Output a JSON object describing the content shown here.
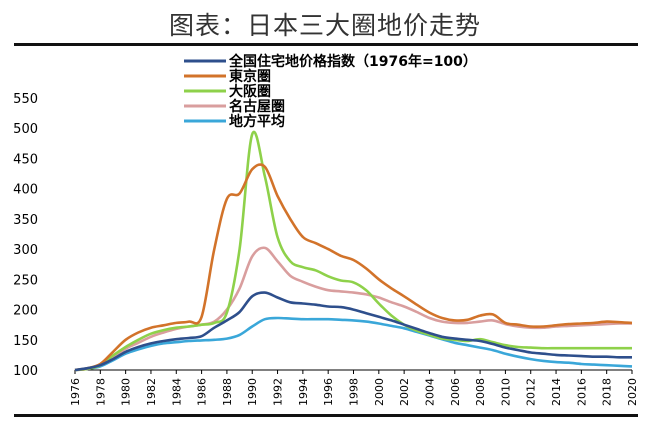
{
  "title": "图表：日本三大圈地价走势",
  "chart_data": {
    "type": "line",
    "title": "图表：日本三大圈地价走势",
    "xlabel": "",
    "ylabel": "",
    "xlim": [
      1976,
      2020
    ],
    "ylim": [
      100,
      550
    ],
    "yticks": [
      100,
      150,
      200,
      250,
      300,
      350,
      400,
      450,
      500,
      550
    ],
    "xticks": [
      1976,
      1978,
      1980,
      1982,
      1984,
      1986,
      1988,
      1990,
      1992,
      1994,
      1996,
      1998,
      2000,
      2002,
      2004,
      2006,
      2008,
      2010,
      2012,
      2014,
      2016,
      2018,
      2020
    ],
    "grid": false,
    "legend": "top-center",
    "x": [
      1976,
      1977,
      1978,
      1979,
      1980,
      1981,
      1982,
      1983,
      1984,
      1985,
      1986,
      1987,
      1988,
      1989,
      1990,
      1991,
      1992,
      1993,
      1994,
      1995,
      1996,
      1997,
      1998,
      1999,
      2000,
      2001,
      2002,
      2003,
      2004,
      2005,
      2006,
      2007,
      2008,
      2009,
      2010,
      2011,
      2012,
      2013,
      2014,
      2015,
      2016,
      2017,
      2018,
      2019,
      2020
    ],
    "series": [
      {
        "name": "全国住宅地价格指数（1976年=100）",
        "color": "#2e4f8c",
        "values": [
          100,
          103,
          108,
          118,
          130,
          138,
          144,
          148,
          151,
          153,
          156,
          170,
          182,
          196,
          222,
          228,
          220,
          212,
          210,
          208,
          205,
          204,
          200,
          194,
          188,
          182,
          175,
          168,
          161,
          155,
          152,
          150,
          148,
          143,
          137,
          133,
          129,
          127,
          125,
          124,
          123,
          122,
          122,
          121,
          121
        ]
      },
      {
        "name": "東京圏",
        "color": "#d2732a",
        "values": [
          100,
          103,
          110,
          130,
          150,
          162,
          170,
          174,
          178,
          180,
          188,
          300,
          383,
          392,
          432,
          436,
          388,
          350,
          320,
          310,
          300,
          289,
          282,
          268,
          250,
          235,
          222,
          208,
          195,
          186,
          182,
          183,
          190,
          192,
          178,
          175,
          172,
          172,
          174,
          176,
          177,
          178,
          180,
          179,
          178
        ]
      },
      {
        "name": "大阪圏",
        "color": "#8ed14a",
        "values": [
          100,
          102,
          108,
          124,
          138,
          150,
          160,
          166,
          170,
          172,
          175,
          178,
          195,
          300,
          490,
          420,
          320,
          280,
          270,
          265,
          255,
          248,
          245,
          232,
          210,
          190,
          175,
          165,
          158,
          152,
          150,
          148,
          151,
          146,
          141,
          138,
          137,
          136,
          136,
          136,
          136,
          136,
          136,
          136,
          136
        ]
      },
      {
        "name": "名古屋圏",
        "color": "#d99e9e",
        "values": [
          100,
          102,
          108,
          120,
          135,
          145,
          155,
          162,
          168,
          172,
          175,
          180,
          200,
          235,
          288,
          302,
          280,
          256,
          246,
          238,
          232,
          230,
          228,
          225,
          220,
          212,
          205,
          196,
          186,
          180,
          178,
          178,
          180,
          182,
          176,
          172,
          170,
          170,
          172,
          173,
          174,
          175,
          176,
          177,
          177
        ]
      },
      {
        "name": "地方平均",
        "color": "#3aa7d9",
        "values": [
          100,
          102,
          106,
          116,
          127,
          134,
          140,
          144,
          146,
          148,
          149,
          150,
          152,
          158,
          172,
          184,
          186,
          185,
          184,
          184,
          184,
          183,
          182,
          180,
          177,
          173,
          169,
          163,
          157,
          151,
          145,
          141,
          137,
          133,
          127,
          122,
          118,
          115,
          113,
          112,
          110,
          109,
          108,
          107,
          106
        ]
      }
    ]
  }
}
